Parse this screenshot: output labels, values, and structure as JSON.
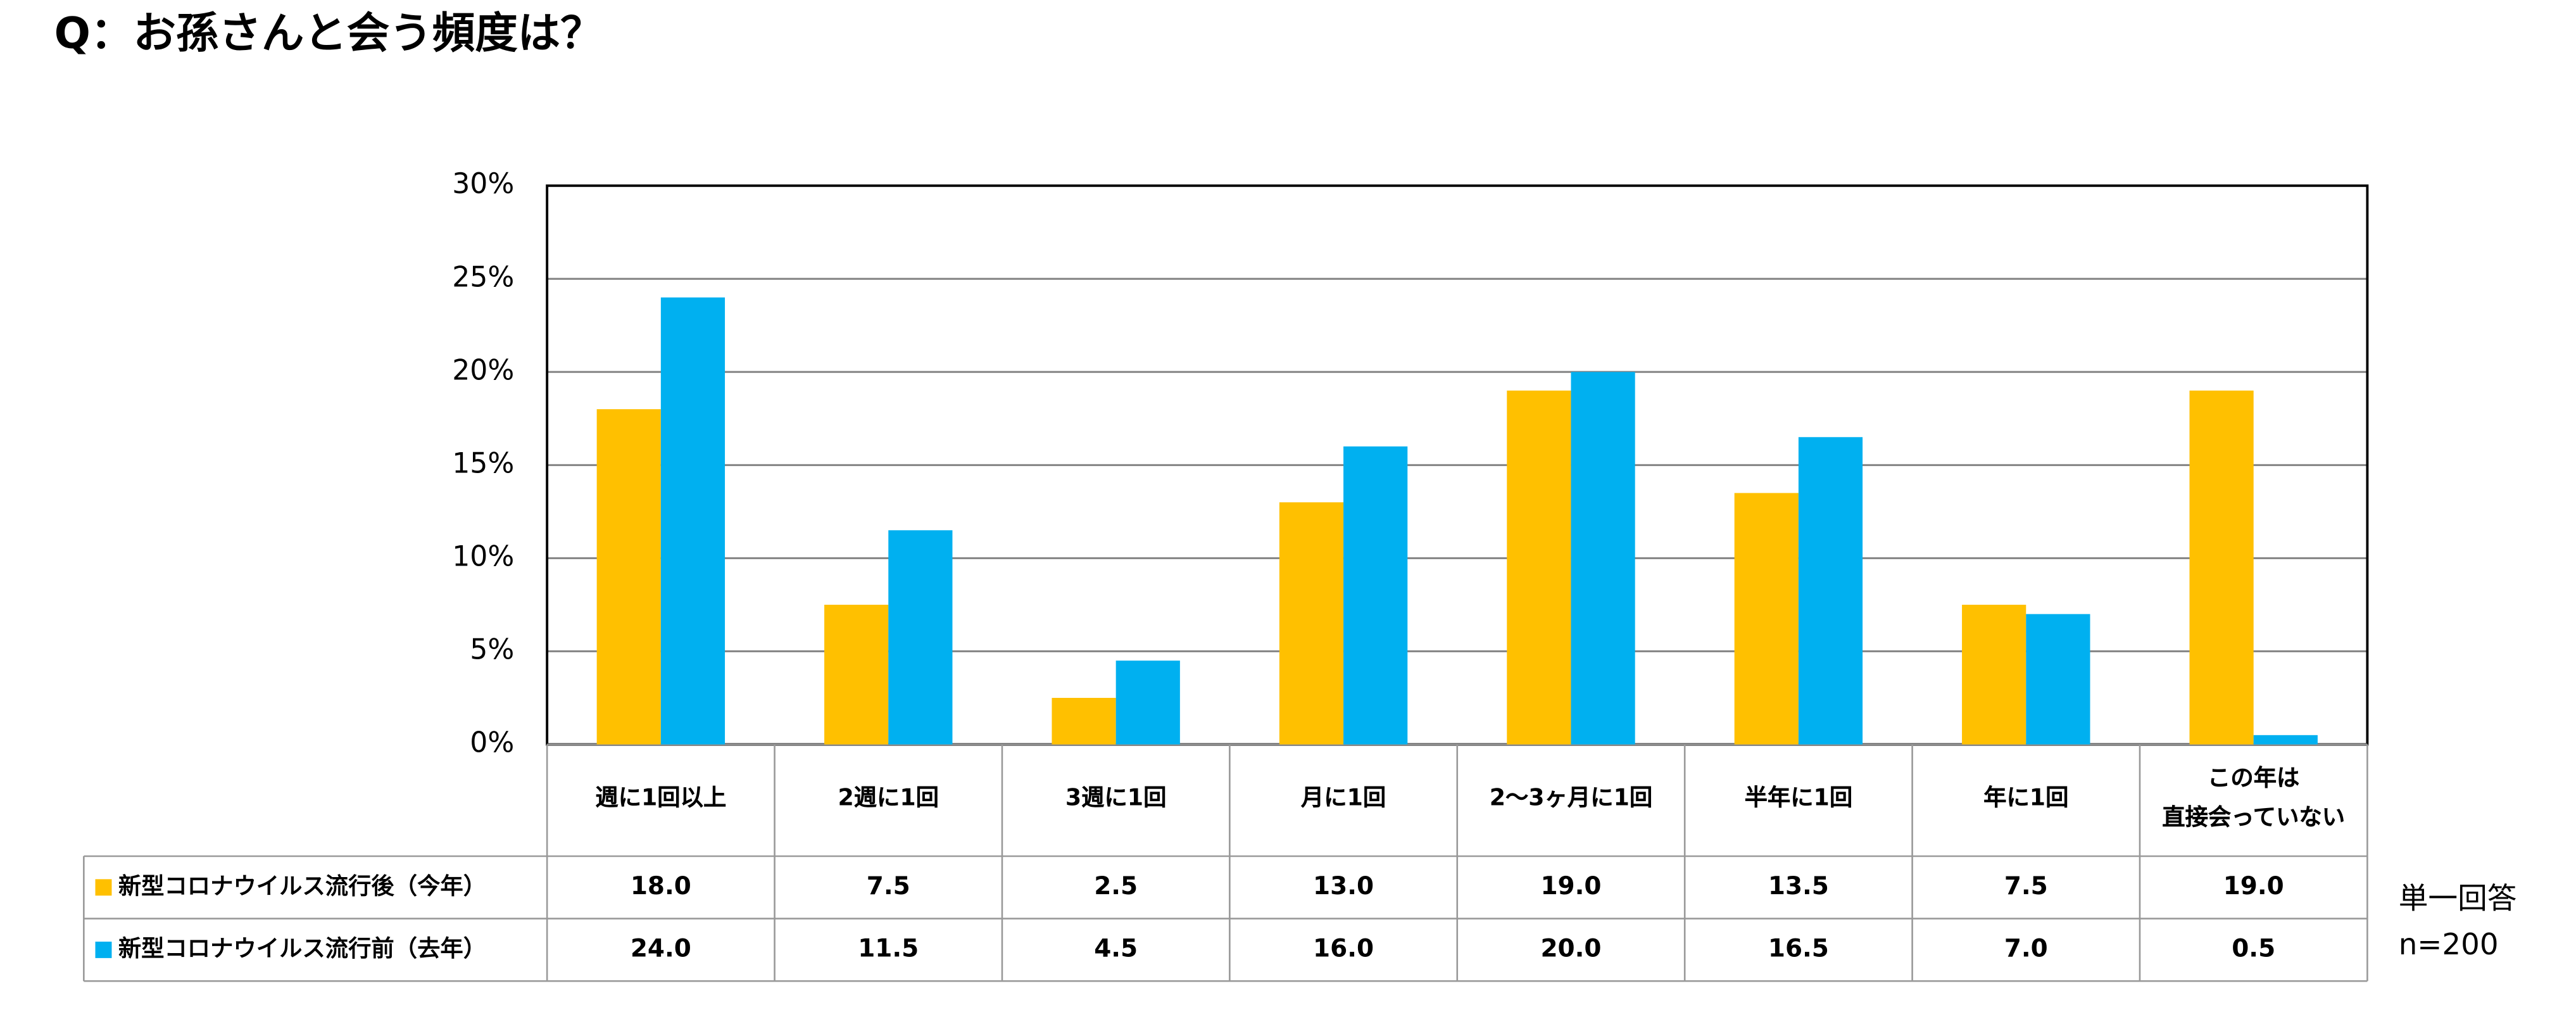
{
  "chart_data": {
    "type": "bar",
    "title": "Q：お孫さんと会う頻度は？",
    "categories": [
      "週に1回以上",
      "2週に1回",
      "3週に1回",
      "月に1回",
      "2～3ヶ月に1回",
      "半年に1回",
      "年に1回",
      "この年は\n直接会っていない"
    ],
    "series": [
      {
        "name": "新型コロナウイルス流行後（今年）",
        "color": "#FFC000",
        "values": [
          18,
          7.5,
          2.5,
          13,
          19,
          13.5,
          7.5,
          19
        ],
        "value_labels": [
          "18.0",
          "7.5",
          "2.5",
          "13.0",
          "19.0",
          "13.5",
          "7.5",
          "19.0"
        ]
      },
      {
        "name": "新型コロナウイルス流行前（去年）",
        "color": "#00B0F0",
        "values": [
          24,
          11.5,
          4.5,
          16,
          20,
          16.5,
          7,
          0.5
        ],
        "value_labels": [
          "24.0",
          "11.5",
          "4.5",
          "16.0",
          "20.0",
          "16.5",
          "7.0",
          "0.5"
        ]
      }
    ],
    "ylim": [
      0,
      30
    ],
    "yticks": [
      {
        "value": 0,
        "label": "0%"
      },
      {
        "value": 5,
        "label": "5%"
      },
      {
        "value": 10,
        "label": "10%"
      },
      {
        "value": 15,
        "label": "15%"
      },
      {
        "value": 20,
        "label": "20%"
      },
      {
        "value": 25,
        "label": "25%"
      },
      {
        "value": 30,
        "label": "30%"
      }
    ],
    "grid": true,
    "notes": [
      "単一回答",
      "n=200"
    ]
  }
}
